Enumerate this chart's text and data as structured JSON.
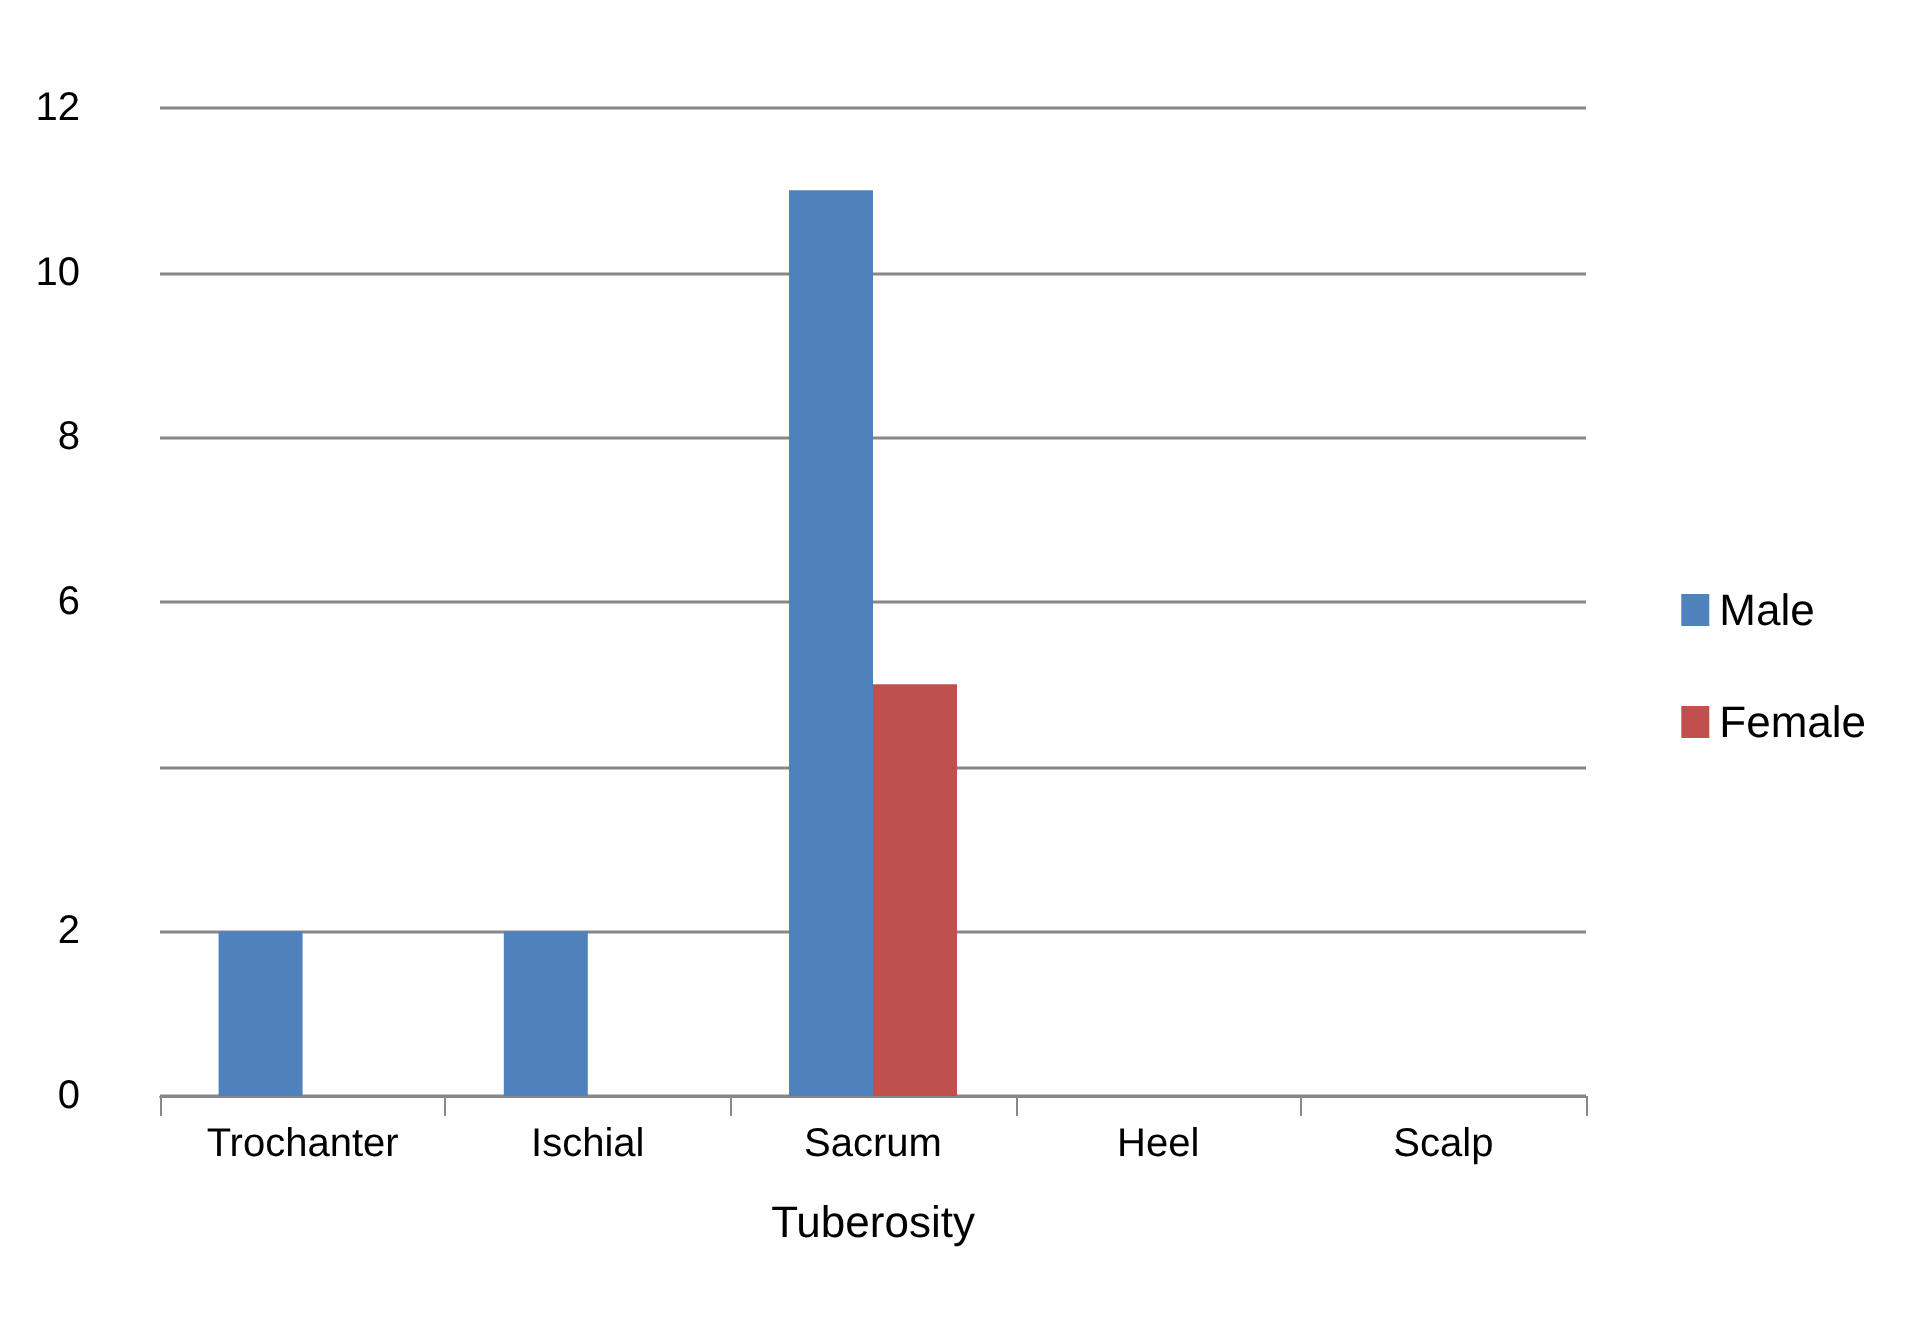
{
  "chart_data": {
    "type": "bar",
    "xlabel": "Tuberosity",
    "categories": [
      "Trochanter",
      "Ischial",
      "Sacrum",
      "Heel",
      "Scalp"
    ],
    "series": [
      {
        "name": "Male",
        "color": "#4f81bd",
        "values": [
          2,
          2,
          11,
          0,
          0
        ]
      },
      {
        "name": "Female",
        "color": "#c0504d",
        "values": [
          0,
          0,
          5,
          0,
          0
        ]
      }
    ],
    "ylim": [
      0,
      12
    ],
    "yticks": [
      0,
      2,
      {
        "value": 4,
        "label": null
      },
      6,
      8,
      10,
      12
    ],
    "grid": "y",
    "legend": "right"
  }
}
